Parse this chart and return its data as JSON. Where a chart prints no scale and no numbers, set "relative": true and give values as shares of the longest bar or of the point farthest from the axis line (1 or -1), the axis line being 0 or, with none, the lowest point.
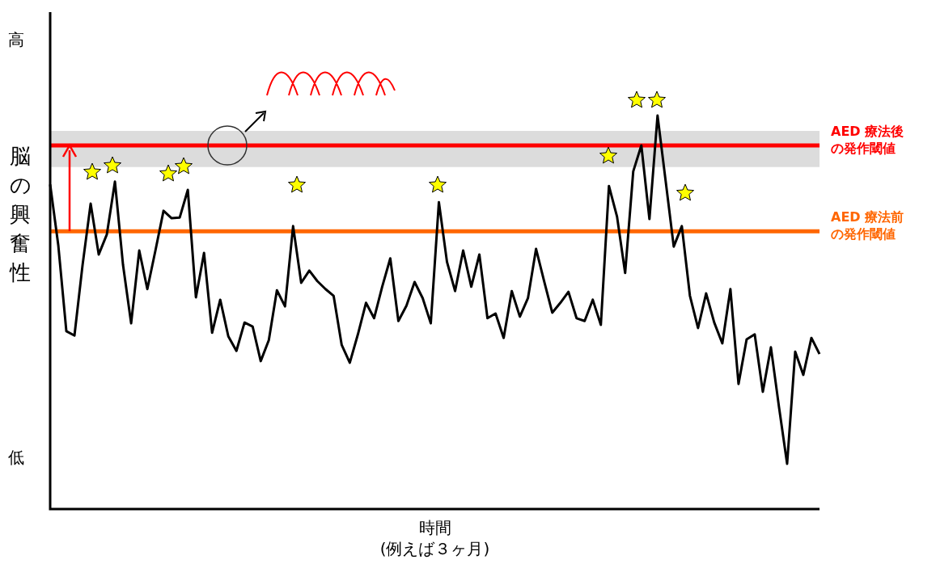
{
  "chart_data": {
    "type": "line",
    "relative": true,
    "xlabel": "時間\n(例えば３ヶ月)",
    "ylabel": "脳の興奮性",
    "annotations": [
      "高",
      "低"
    ],
    "tick_labels": false,
    "categories": [
      null,
      null,
      null,
      null,
      null,
      null,
      null,
      null,
      null,
      null,
      null,
      null,
      null,
      null,
      null,
      null,
      null,
      null,
      null,
      null,
      null,
      null,
      null,
      null,
      null,
      null,
      null,
      null,
      null,
      null,
      null,
      null,
      null,
      null,
      null,
      null,
      null,
      null,
      null,
      null,
      null,
      null,
      null,
      null,
      null,
      null,
      null,
      null,
      null,
      null,
      null,
      null,
      null,
      null,
      null,
      null,
      null,
      null,
      null,
      null,
      null,
      null,
      null,
      null,
      null,
      null,
      null,
      null,
      null,
      null,
      null,
      null,
      null,
      null,
      null,
      null,
      null,
      null,
      null,
      null,
      null,
      null,
      null,
      null,
      null,
      null,
      null,
      null,
      null,
      null,
      null,
      null,
      null,
      null,
      null,
      null
    ],
    "series": [
      {
        "color": "#000000",
        "values": [
          0.825,
          0.671,
          0.452,
          0.441,
          0.62,
          0.776,
          0.647,
          0.698,
          0.832,
          0.62,
          0.472,
          0.657,
          0.559,
          0.657,
          0.758,
          0.739,
          0.741,
          0.811,
          0.538,
          0.651,
          0.448,
          0.532,
          0.439,
          0.402,
          0.474,
          0.464,
          0.376,
          0.429,
          0.556,
          0.515,
          0.719,
          0.575,
          0.606,
          0.579,
          0.559,
          0.542,
          0.417,
          0.372,
          0.444,
          0.524,
          0.485,
          0.565,
          0.637,
          0.478,
          0.517,
          0.577,
          0.536,
          0.472,
          0.78,
          0.628,
          0.554,
          0.657,
          0.565,
          0.647,
          0.485,
          0.497,
          0.435,
          0.554,
          0.489,
          0.536,
          0.661,
          0.579,
          0.499,
          0.524,
          0.552,
          0.485,
          0.478,
          0.532,
          0.468,
          0.821,
          0.743,
          0.6,
          0.858,
          0.924,
          0.737,
          1,
          0.834,
          0.667,
          0.719,
          0.542,
          0.46,
          0.548,
          0.474,
          0.421,
          0.559,
          0.318,
          0.431,
          0.444,
          0.298,
          0.411,
          0.259,
          0.115,
          0.4,
          0.341,
          0.435,
          0.394
        ]
      }
    ],
    "ref_lines": [
      {
        "axis": "y",
        "value": 0.924,
        "label": "AED 療法後の発作閾値",
        "color": "#ff0000"
      },
      {
        "axis": "y",
        "value": 0.706,
        "label": "AED 療法前の発作閾値",
        "color": "#ff6600"
      }
    ],
    "bands": [
      {
        "axis": "y",
        "from": 0.869,
        "to": 0.961,
        "color": "#dcdcdc"
      }
    ]
  }
}
